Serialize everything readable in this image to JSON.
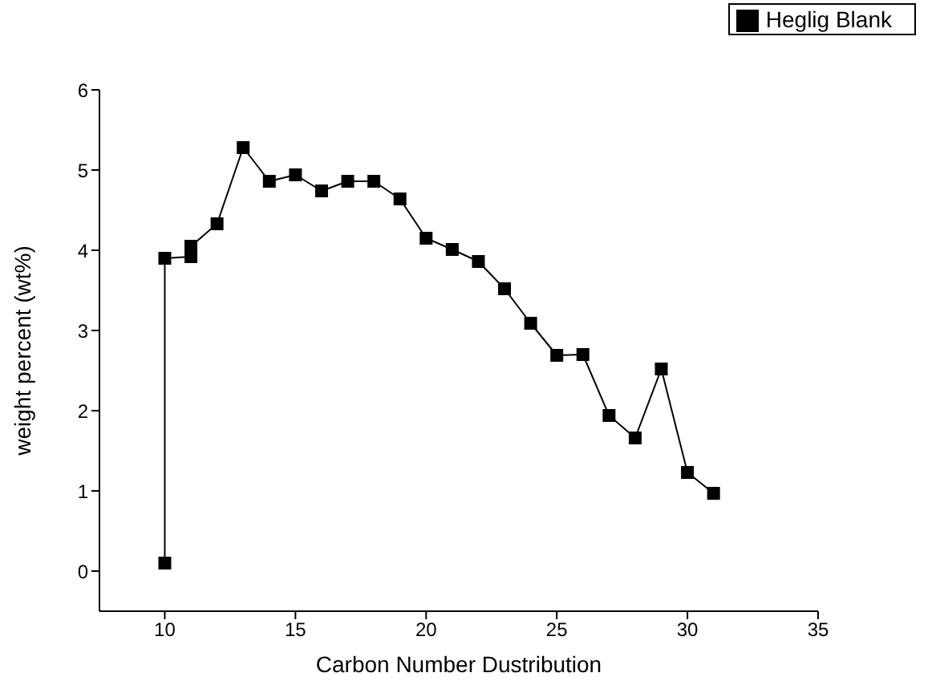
{
  "chart_data": {
    "type": "line",
    "xlabel": "Carbon Number Dustribution",
    "ylabel": "weight percent (wt%)",
    "x": [
      10,
      10,
      11,
      11,
      12,
      13,
      14,
      15,
      16,
      17,
      18,
      19,
      20,
      21,
      22,
      23,
      24,
      25,
      26,
      27,
      28,
      29,
      30,
      31
    ],
    "series": [
      {
        "name": "Heglig Blank",
        "color": "#000000",
        "values": [
          0.1,
          3.9,
          3.92,
          4.05,
          4.33,
          5.28,
          4.86,
          4.94,
          4.74,
          4.86,
          4.86,
          4.64,
          4.15,
          4.01,
          3.86,
          3.52,
          3.09,
          2.69,
          2.7,
          1.94,
          1.66,
          2.52,
          1.23,
          0.97
        ]
      }
    ],
    "xlim": [
      7.5,
      35
    ],
    "xticks": [
      10,
      15,
      20,
      25,
      30,
      35
    ],
    "ylim": [
      -0.5,
      6
    ],
    "yticks": [
      0,
      1,
      2,
      3,
      4,
      5,
      6
    ],
    "marker": "square",
    "line_style": "solid",
    "legend": "top right",
    "grid": false
  }
}
